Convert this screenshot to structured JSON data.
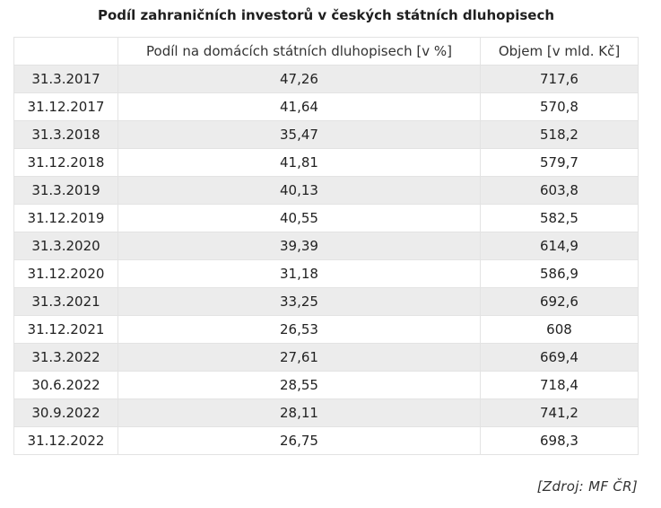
{
  "title": "Podíl zahraničních investorů v českých státních dluhopisech",
  "table": {
    "headers": [
      "",
      "Podíl na domácích státních dluhopisech [v %]",
      "Objem [v mld. Kč]"
    ],
    "rows": [
      [
        "31.3.2017",
        "47,26",
        "717,6"
      ],
      [
        "31.12.2017",
        "41,64",
        "570,8"
      ],
      [
        "31.3.2018",
        "35,47",
        "518,2"
      ],
      [
        "31.12.2018",
        "41,81",
        "579,7"
      ],
      [
        "31.3.2019",
        "40,13",
        "603,8"
      ],
      [
        "31.12.2019",
        "40,55",
        "582,5"
      ],
      [
        "31.3.2020",
        "39,39",
        "614,9"
      ],
      [
        "31.12.2020",
        "31,18",
        "586,9"
      ],
      [
        "31.3.2021",
        "33,25",
        "692,6"
      ],
      [
        "31.12.2021",
        "26,53",
        "608"
      ],
      [
        "31.3.2022",
        "27,61",
        "669,4"
      ],
      [
        "30.6.2022",
        "28,55",
        "718,4"
      ],
      [
        "30.9.2022",
        "28,11",
        "741,2"
      ],
      [
        "31.12.2022",
        "26,75",
        "698,3"
      ]
    ]
  },
  "source": "[Zdroj: MF ČR]"
}
